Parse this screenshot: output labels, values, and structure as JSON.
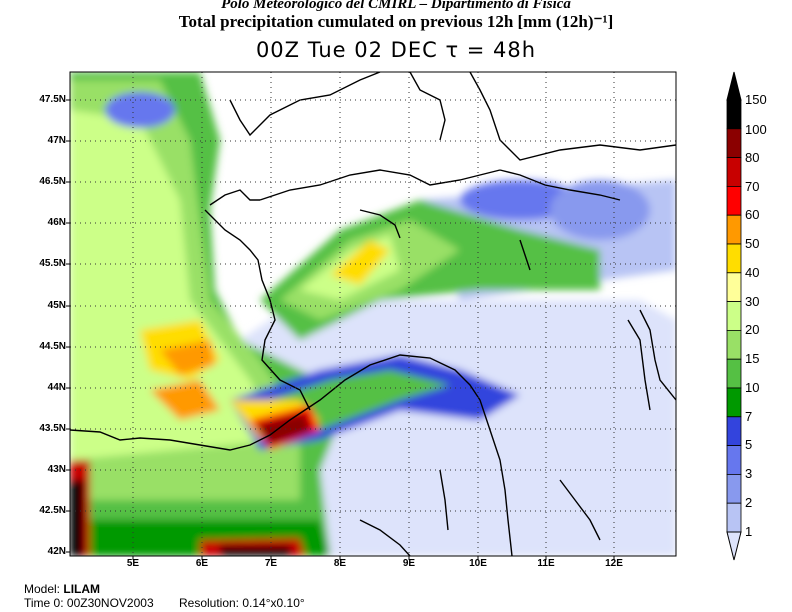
{
  "header": {
    "line1": "Polo Meteorologico del CMIRL – Dipartimento di Fisica",
    "line2": "Total precipitation cumulated on previous 12h [mm (12h)⁻¹]",
    "line3": "00Z Tue 02 DEC   τ = 48h"
  },
  "map": {
    "lat_labels": [
      "47.5N",
      "47N",
      "46.5N",
      "46N",
      "45.5N",
      "45N",
      "44.5N",
      "44N",
      "43.5N",
      "43N",
      "42.5N",
      "42N"
    ],
    "lon_labels": [
      "5E",
      "6E",
      "7E",
      "8E",
      "9E",
      "10E",
      "11E",
      "12E"
    ]
  },
  "colorbar": {
    "levels": [
      "150",
      "100",
      "80",
      "70",
      "60",
      "50",
      "40",
      "30",
      "20",
      "15",
      "10",
      "7",
      "5",
      "3",
      "2",
      "1"
    ],
    "colors": [
      "#000000",
      "#8b0000",
      "#c80000",
      "#ff0000",
      "#ff9900",
      "#ffdd00",
      "#ffff99",
      "#ccff88",
      "#99e066",
      "#55c044",
      "#009900",
      "#3344dd",
      "#6677ee",
      "#8899ee",
      "#b8c4f4",
      "#dde3fb"
    ]
  },
  "footer": {
    "model_label": "Model:",
    "model_value": "LILAM",
    "time_label": "Time 0:",
    "time_value": "00Z30NOV2003",
    "res_label": "Resolution:",
    "res_value": "0.14°x0.10°"
  }
}
